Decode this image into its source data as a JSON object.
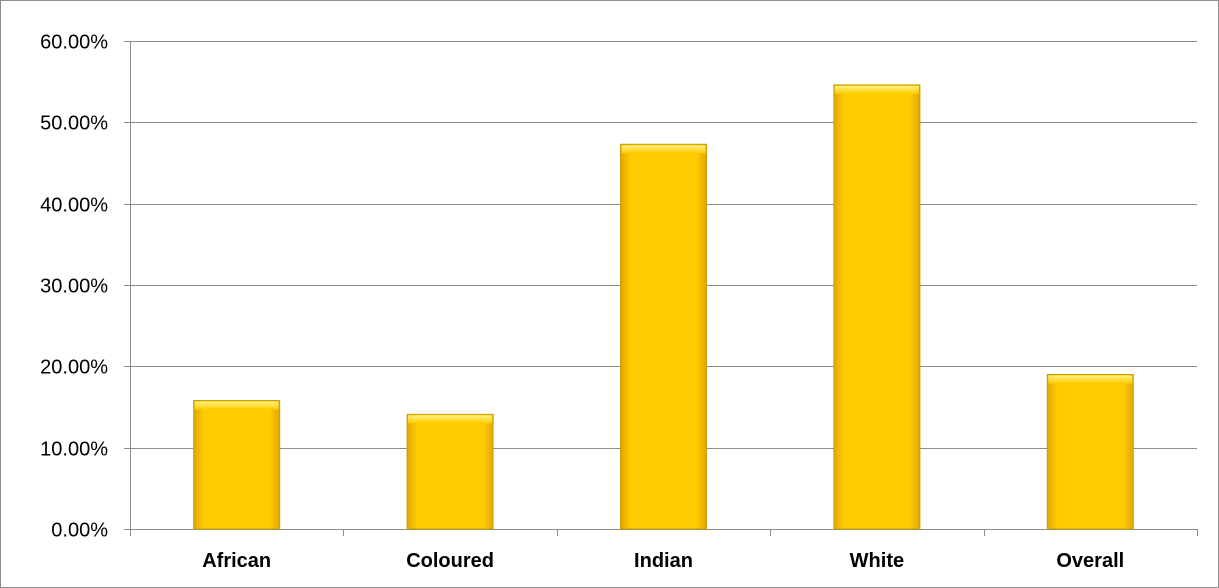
{
  "chart_data": {
    "type": "bar",
    "title": "",
    "xlabel": "",
    "ylabel": "",
    "categories": [
      "African",
      "Coloured",
      "Indian",
      "White",
      "Overall"
    ],
    "values": [
      15.8,
      14.1,
      47.3,
      54.6,
      19.0
    ],
    "ylim": [
      0,
      60
    ],
    "y_ticks": [
      0,
      10,
      20,
      30,
      40,
      50,
      60
    ],
    "y_tick_labels": [
      "0.00%",
      "10.00%",
      "20.00%",
      "30.00%",
      "40.00%",
      "50.00%",
      "60.00%"
    ],
    "grid": true,
    "legend": "none",
    "colors": {
      "bar_fill": "#FFCC00",
      "bar_edge": "#C8A000",
      "gridline": "#8C8C8C",
      "axis": "#8C8C8C"
    }
  }
}
